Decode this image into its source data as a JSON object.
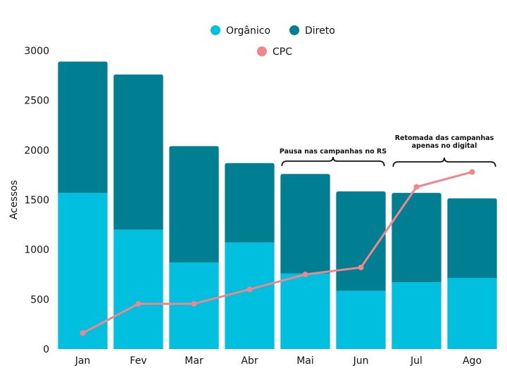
{
  "chart_data": {
    "type": "bar",
    "stacked": true,
    "categories": [
      "Jan",
      "Fev",
      "Mar",
      "Abr",
      "Mai",
      "Jun",
      "Jul",
      "Ago"
    ],
    "series": [
      {
        "name": "Orgânico",
        "type": "bar",
        "color": "#00bfdf",
        "values": [
          1570,
          1200,
          870,
          1070,
          760,
          585,
          670,
          715
        ]
      },
      {
        "name": "Direto",
        "type": "bar",
        "color": "#007f92",
        "values": [
          1320,
          1560,
          1170,
          800,
          1000,
          1000,
          900,
          800
        ]
      },
      {
        "name": "CPC",
        "type": "line",
        "color": "#f0868c",
        "values": [
          160,
          455,
          455,
          600,
          750,
          820,
          1630,
          1780
        ]
      }
    ],
    "ylabel": "Acessos",
    "xlabel": "",
    "ylim": [
      0,
      3000
    ],
    "yticks": [
      0,
      500,
      1000,
      1500,
      2000,
      2500,
      3000
    ],
    "grid": false,
    "legend_position": "top-center",
    "annotations": [
      {
        "lines": [
          "Pausa nas campanhas no RS"
        ],
        "span": [
          "Mai",
          "Jun"
        ]
      },
      {
        "lines": [
          "Retomada das campanhas",
          "apenas no digital"
        ],
        "span": [
          "Jul",
          "Ago"
        ]
      }
    ]
  }
}
